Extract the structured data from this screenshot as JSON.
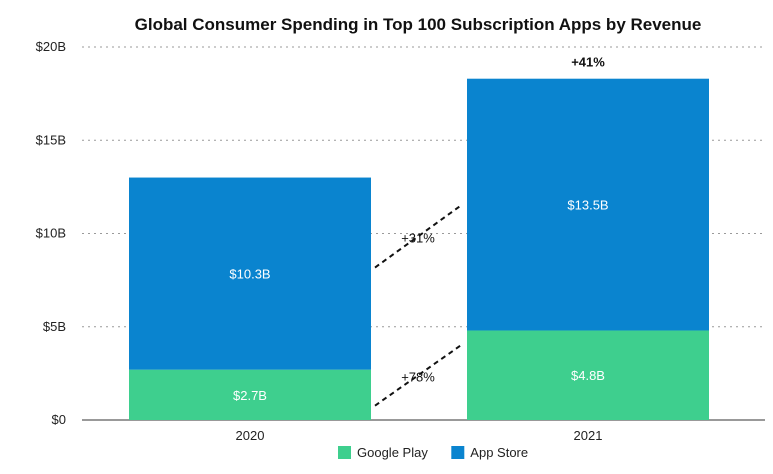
{
  "chart_data": {
    "type": "bar",
    "stacked": true,
    "title": "Global Consumer Spending in Top 100 Subscription Apps by Revenue",
    "categories": [
      "2020",
      "2021"
    ],
    "series": [
      {
        "name": "Google Play",
        "values": [
          2.7,
          4.8
        ],
        "labels": [
          "$2.7B",
          "$4.8B"
        ],
        "color": "#3ecf8e"
      },
      {
        "name": "App Store",
        "values": [
          10.3,
          13.5
        ],
        "labels": [
          "$10.3B",
          "$13.5B"
        ],
        "color": "#0a84cf"
      }
    ],
    "ylim": [
      0,
      20
    ],
    "yticks": [
      0,
      5,
      10,
      15,
      20
    ],
    "ytick_labels": [
      "$0",
      "$5B",
      "$10B",
      "$15B",
      "$20B"
    ],
    "grid": true,
    "legend_position": "bottom",
    "annotations": {
      "total_growth": "+41%",
      "app_store_growth": "+31%",
      "google_play_growth": "+78%"
    }
  }
}
